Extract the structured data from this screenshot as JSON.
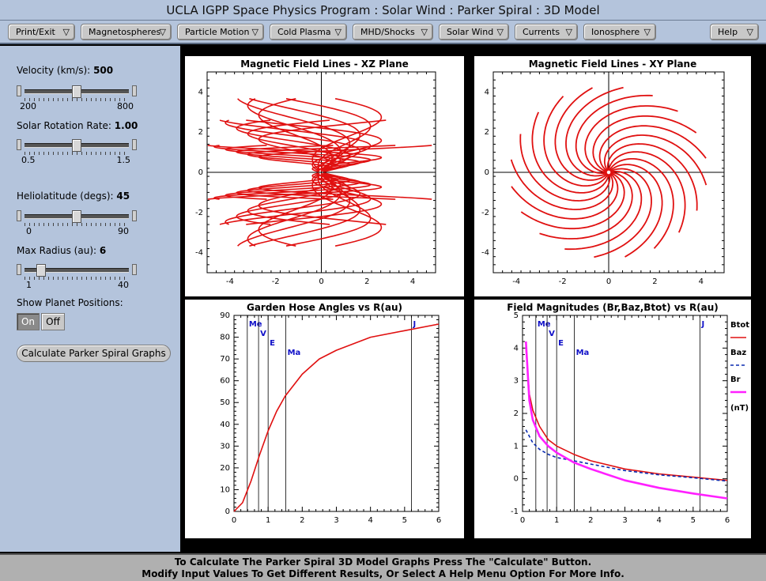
{
  "window": {
    "title": "UCLA IGPP Space Physics Program : Solar Wind : Parker Spiral : 3D Model"
  },
  "menus": [
    {
      "label": "Print/Exit"
    },
    {
      "label": "Magnetospheres"
    },
    {
      "label": "Particle Motion"
    },
    {
      "label": "Cold Plasma"
    },
    {
      "label": "MHD/Shocks"
    },
    {
      "label": "Solar Wind"
    },
    {
      "label": "Currents"
    },
    {
      "label": "Ionosphere"
    },
    {
      "label": "Help"
    }
  ],
  "controls": {
    "velocity": {
      "label": "Velocity (km/s):",
      "value": "500",
      "min": "200",
      "max": "800",
      "fraction": 0.5
    },
    "rotation": {
      "label": "Solar Rotation Rate:",
      "value": "1.00",
      "min": "0.5",
      "max": "1.5",
      "fraction": 0.5
    },
    "heliolatitude": {
      "label": "Heliolatitude (degs):",
      "value": "45",
      "min": "0",
      "max": "90",
      "fraction": 0.5
    },
    "max_radius": {
      "label": "Max Radius (au):",
      "value": "6",
      "min": "1",
      "max": "40",
      "fraction": 0.128
    },
    "planets": {
      "label": "Show Planet Positions:",
      "on": "On",
      "off": "Off",
      "selected": "On"
    },
    "calculate_label": "Calculate Parker Spiral Graphs"
  },
  "status": {
    "line1": "To Calculate The Parker Spiral 3D Model Graphs Press The \"Calculate\" Button.",
    "line2": "Modify Input Values To Get Different Results, Or Select A Help Menu Option For More Info."
  },
  "colors": {
    "panel_bg": "#b4c4dc",
    "line_red": "#e01010",
    "baz_blue": "#0a2ab0",
    "br_magenta": "#ff20ff",
    "planet_label": "#1010c8"
  },
  "chart_data": [
    {
      "type": "line",
      "title": "Magnetic Field Lines - XZ Plane",
      "xlim": [
        -5,
        5
      ],
      "ylim": [
        -5,
        5
      ],
      "x_ticks": [
        -4,
        -2,
        0,
        2,
        4
      ],
      "y_ticks": [
        -4,
        -2,
        0,
        2,
        4
      ],
      "description_series": "parker-spiral field lines projected onto XZ plane, heliolatitude up to 45 deg, r 0.1 to 6 au"
    },
    {
      "type": "line",
      "title": "Magnetic Field Lines - XY Plane",
      "xlim": [
        -5,
        5
      ],
      "ylim": [
        -5,
        5
      ],
      "x_ticks": [
        -4,
        -2,
        0,
        2,
        4
      ],
      "y_ticks": [
        -4,
        -2,
        0,
        2,
        4
      ],
      "spiral_count": 20
    },
    {
      "type": "line",
      "title": "Garden Hose Angles vs R(au)",
      "xlim": [
        0,
        6
      ],
      "ylim": [
        0,
        90
      ],
      "x_ticks": [
        0,
        1,
        2,
        3,
        4,
        5,
        6
      ],
      "y_ticks": [
        0,
        10,
        20,
        30,
        40,
        50,
        60,
        70,
        80,
        90
      ],
      "series": [
        {
          "x": [
            0,
            0.25,
            0.5,
            0.75,
            1.0,
            1.25,
            1.5,
            2.0,
            2.5,
            3.0,
            4.0,
            5.0,
            6.0
          ],
          "values": [
            0,
            4,
            14,
            26,
            37,
            46,
            53,
            63,
            70,
            74,
            80,
            83,
            86
          ]
        }
      ],
      "planets": [
        {
          "name": "Me",
          "r": 0.39
        },
        {
          "name": "V",
          "r": 0.72
        },
        {
          "name": "E",
          "r": 1.0
        },
        {
          "name": "Ma",
          "r": 1.52
        },
        {
          "name": "J",
          "r": 5.2
        }
      ]
    },
    {
      "type": "line",
      "title": "Field Magnitudes (Br,Baz,Btot) vs R(au)",
      "xlim": [
        0,
        6
      ],
      "ylim": [
        -1,
        5
      ],
      "x_ticks": [
        0,
        1,
        2,
        3,
        4,
        5,
        6
      ],
      "y_ticks": [
        -1,
        0,
        1,
        2,
        3,
        4,
        5
      ],
      "legend": [
        "Btot",
        "Baz",
        "Br",
        "(nT)"
      ],
      "series": [
        {
          "name": "Btot",
          "x": [
            0.1,
            0.2,
            0.3,
            0.5,
            0.75,
            1,
            1.5,
            2,
            3,
            4,
            5,
            6
          ],
          "values": [
            4.0,
            2.6,
            2.1,
            1.6,
            1.2,
            1.0,
            0.75,
            0.55,
            0.3,
            0.15,
            0.05,
            -0.05
          ]
        },
        {
          "name": "Baz",
          "x": [
            0.1,
            0.2,
            0.3,
            0.5,
            0.75,
            1,
            1.5,
            2,
            3,
            4,
            5,
            6
          ],
          "values": [
            1.5,
            1.3,
            1.1,
            0.9,
            0.75,
            0.65,
            0.55,
            0.45,
            0.25,
            0.12,
            0.03,
            -0.07
          ]
        },
        {
          "name": "Br",
          "x": [
            0.1,
            0.2,
            0.3,
            0.5,
            0.75,
            1,
            1.5,
            2,
            3,
            4,
            5,
            6
          ],
          "values": [
            4.2,
            2.4,
            1.8,
            1.3,
            1.0,
            0.8,
            0.5,
            0.3,
            -0.05,
            -0.28,
            -0.45,
            -0.6
          ]
        }
      ],
      "planets": [
        {
          "name": "Me",
          "r": 0.39
        },
        {
          "name": "V",
          "r": 0.72
        },
        {
          "name": "E",
          "r": 1.0
        },
        {
          "name": "Ma",
          "r": 1.52
        },
        {
          "name": "J",
          "r": 5.2
        }
      ]
    }
  ]
}
